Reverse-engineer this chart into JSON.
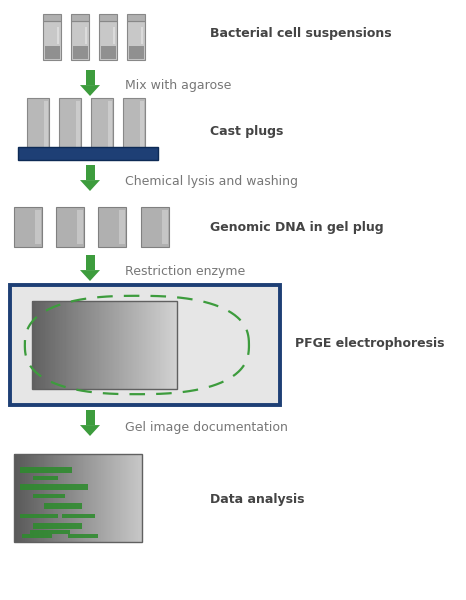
{
  "bg_color": "#ffffff",
  "green": "#3d9c3d",
  "blue_border": "#1e3f75",
  "text_bold_color": "#444444",
  "text_normal_color": "#777777",
  "steps": [
    {
      "label": "Bacterial cell suspensions",
      "bold": true
    },
    {
      "label": "Mix with agarose",
      "bold": false
    },
    {
      "label": "Cast plugs",
      "bold": true
    },
    {
      "label": "Chemical lysis and washing",
      "bold": false
    },
    {
      "label": "Genomic DNA in gel plug",
      "bold": true
    },
    {
      "label": "Restriction enzyme",
      "bold": false
    },
    {
      "label": "PFGE electrophoresis",
      "bold": true
    },
    {
      "label": "Gel image documentation",
      "bold": false
    },
    {
      "label": "Data analysis",
      "bold": true
    }
  ]
}
